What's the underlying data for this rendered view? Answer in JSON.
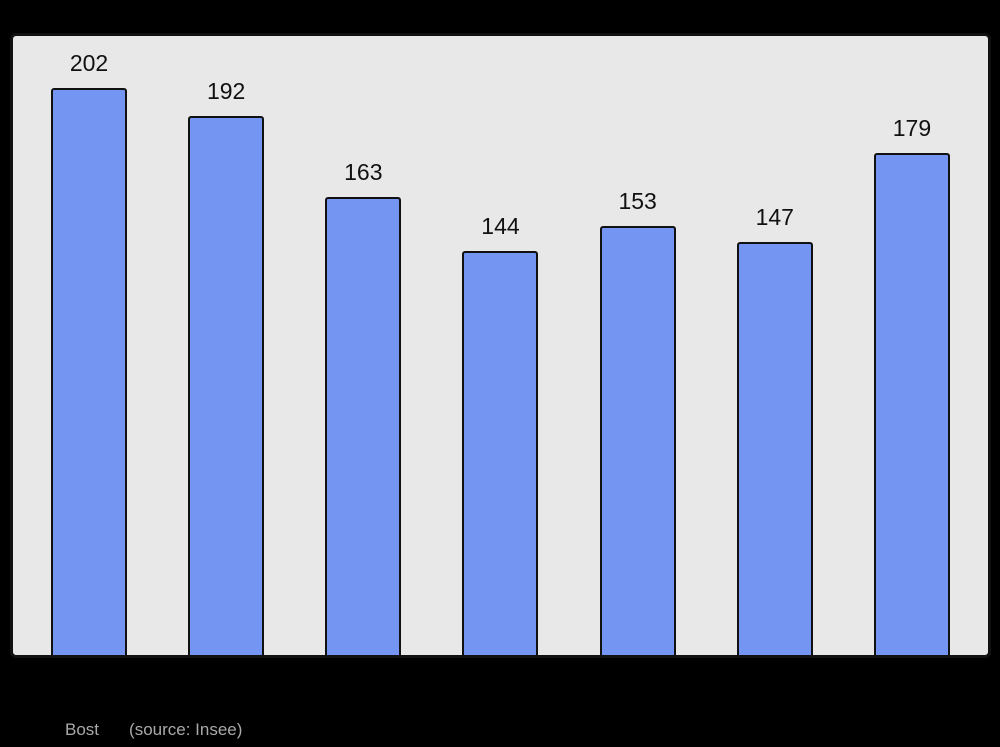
{
  "chart_data": {
    "type": "bar",
    "values": [
      202,
      192,
      163,
      144,
      153,
      147,
      179
    ],
    "data_labels": [
      "202",
      "192",
      "163",
      "144",
      "153",
      "147",
      "179"
    ],
    "title": "",
    "xlabel": "",
    "ylabel": "",
    "ylim": [
      0,
      222
    ],
    "grid": false,
    "legend": "none",
    "bar_color": "#7496f2",
    "bar_border_color": "#111111",
    "plot_background": "#e8e8e8",
    "page_background": "#000000",
    "label_color": "#111111"
  },
  "caption": {
    "title": "Bost",
    "source": "(source: Insee)"
  }
}
